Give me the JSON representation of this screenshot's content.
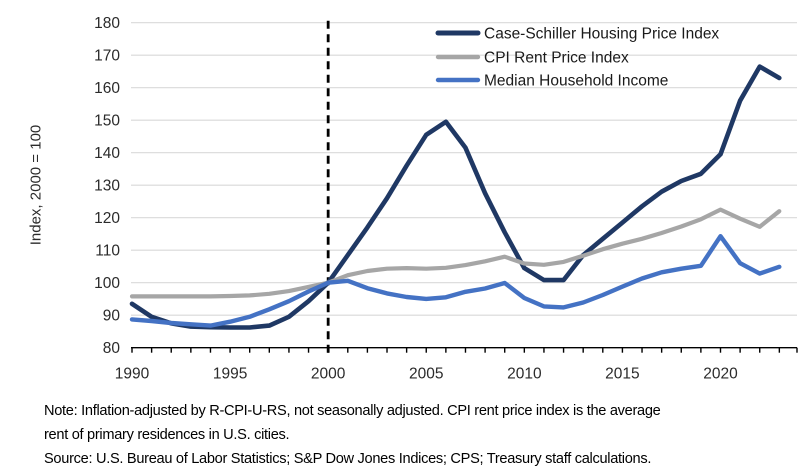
{
  "chart_data": {
    "type": "line",
    "title": "",
    "xlabel": "",
    "ylabel": "Index, 2000 = 100",
    "ylim": [
      80,
      180
    ],
    "xlim": [
      1990,
      2023.9
    ],
    "y_tick_step": 10,
    "x_tick_labels": [
      1990,
      1995,
      2000,
      2005,
      2010,
      2015,
      2020
    ],
    "x_minor_tick_every": 1,
    "reference_line_x": 2000,
    "grid": "horizontal",
    "legend_position": "top-right-inside",
    "x": [
      1990,
      1991,
      1992,
      1993,
      1994,
      1995,
      1996,
      1997,
      1998,
      1999,
      2000,
      2001,
      2002,
      2003,
      2004,
      2005,
      2006,
      2007,
      2008,
      2009,
      2010,
      2011,
      2012,
      2013,
      2014,
      2015,
      2016,
      2017,
      2018,
      2019,
      2020,
      2021,
      2022,
      2023
    ],
    "series": [
      {
        "name": "Case-Schiller Housing Price Index",
        "color": "#1f3864",
        "stroke_width": 4.6,
        "values": [
          93.5,
          89.5,
          87.5,
          86.5,
          86.3,
          86.2,
          86.2,
          86.8,
          89.5,
          94.3,
          100,
          108.5,
          117,
          126,
          136,
          145.5,
          149.5,
          141.5,
          127.5,
          115.5,
          104.5,
          100.8,
          100.8,
          108.5,
          113.5,
          118.5,
          123.5,
          128,
          131.3,
          133.5,
          139.5,
          156,
          166.5,
          163
        ]
      },
      {
        "name": "CPI Rent Price Index",
        "color": "#a6a6a6",
        "stroke_width": 4.2,
        "values": [
          95.8,
          95.8,
          95.8,
          95.8,
          95.8,
          95.9,
          96.1,
          96.6,
          97.4,
          98.7,
          100,
          102.3,
          103.6,
          104.3,
          104.5,
          104.3,
          104.6,
          105.4,
          106.6,
          108,
          105.9,
          105.5,
          106.4,
          108.3,
          110.3,
          112,
          113.5,
          115.3,
          117.3,
          119.5,
          122.5,
          119.7,
          117.2,
          122
        ]
      },
      {
        "name": "Median Household Income",
        "color": "#4472c4",
        "stroke_width": 4.4,
        "values": [
          88.7,
          88.2,
          87.6,
          87.2,
          86.8,
          88,
          89.5,
          91.8,
          94.3,
          97.3,
          100,
          100.6,
          98.3,
          96.7,
          95.6,
          95,
          95.5,
          97.2,
          98.2,
          99.9,
          95.3,
          92.7,
          92.4,
          93.9,
          96.2,
          98.8,
          101.3,
          103.2,
          104.3,
          105.2,
          114.3,
          106,
          102.8,
          104.9
        ]
      }
    ]
  },
  "colors": {
    "gridline": "#d9d9d9",
    "axis": "#000000",
    "reference_line": "#000000",
    "tick_label": "#2b2b2b",
    "legend_text": "#1a1a1a"
  },
  "notes": {
    "note_line1": "Note: Inflation-adjusted by R-CPI-U-RS, not seasonally adjusted. CPI rent price index is the average",
    "note_line2": "rent of primary residences in U.S. cities.",
    "source": "Source: U.S. Bureau of Labor Statistics; S&P Dow Jones Indices; CPS; Treasury staff calculations."
  }
}
